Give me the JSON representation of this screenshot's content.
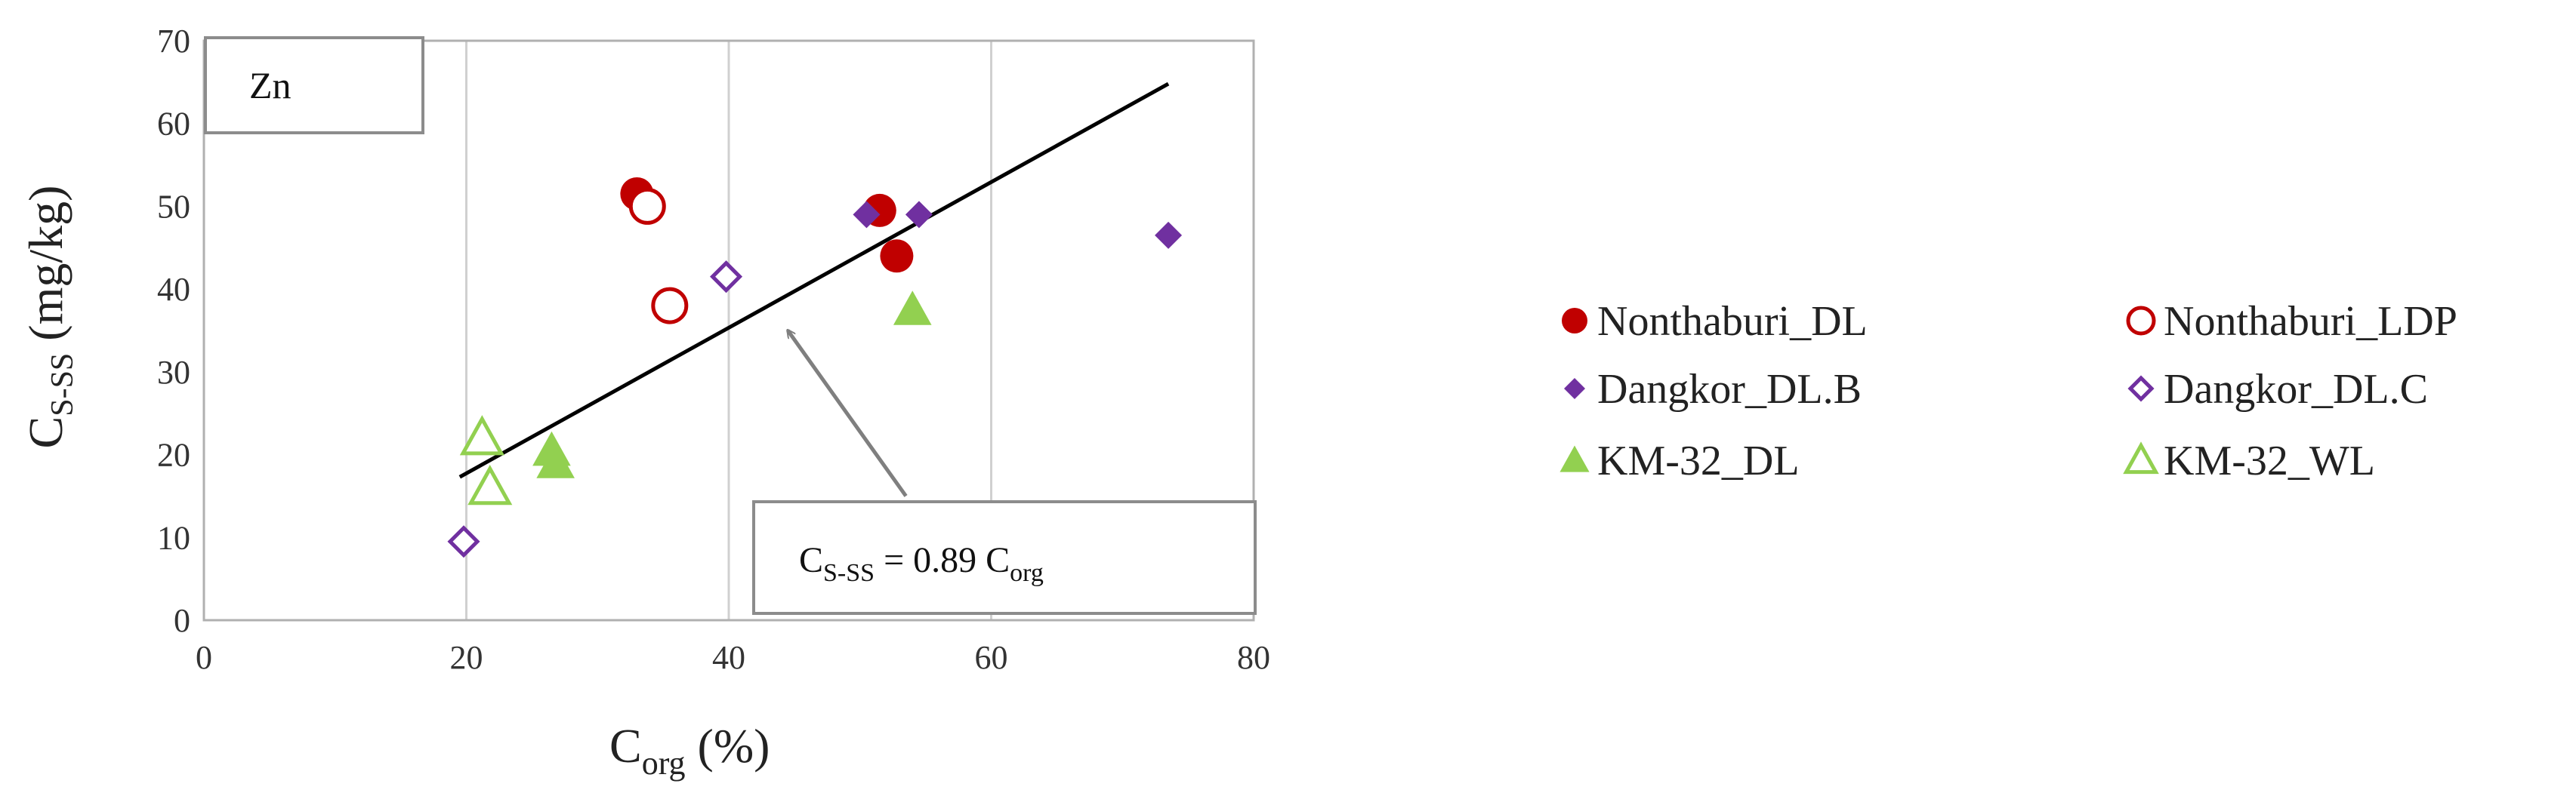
{
  "chart_data": {
    "type": "scatter",
    "panel_label": "Zn",
    "xlabel": {
      "main": "C",
      "sub": "org",
      "unit": "(%)"
    },
    "ylabel": {
      "main": "C",
      "sub": "S-SS",
      "unit": "(mg/kg)"
    },
    "xlim": [
      0,
      80
    ],
    "ylim": [
      0,
      70
    ],
    "x_ticks": [
      "0",
      "20",
      "40",
      "60",
      "80"
    ],
    "y_ticks": [
      "0",
      "10",
      "20",
      "30",
      "40",
      "50",
      "60",
      "70"
    ],
    "grid": "vertical",
    "legend_position": "right",
    "series": [
      {
        "name": "Nonthaburi_DL",
        "marker": "circle",
        "filled": true,
        "color": "#c00000",
        "points": [
          [
            33,
            51.5
          ],
          [
            51.5,
            49.5
          ],
          [
            52.8,
            44
          ]
        ]
      },
      {
        "name": "Nonthaburi_LDP",
        "marker": "circle",
        "filled": false,
        "color": "#c00000",
        "points": [
          [
            33.8,
            50
          ],
          [
            35.5,
            38
          ]
        ]
      },
      {
        "name": "Dangkor_DL.B",
        "marker": "diamond",
        "filled": true,
        "color": "#7030a0",
        "points": [
          [
            50.5,
            49
          ],
          [
            54.5,
            49
          ],
          [
            73.5,
            46.5
          ]
        ]
      },
      {
        "name": "Dangkor_DL.C",
        "marker": "diamond",
        "filled": false,
        "color": "#7030a0",
        "points": [
          [
            19.8,
            9.5
          ],
          [
            39.8,
            41.5
          ]
        ]
      },
      {
        "name": "KM-32_DL",
        "marker": "triangle",
        "filled": true,
        "color": "#92d050",
        "points": [
          [
            26.5,
            20.5
          ],
          [
            26.8,
            19
          ],
          [
            54,
            37.5
          ]
        ]
      },
      {
        "name": "KM-32_WL",
        "marker": "triangle",
        "filled": false,
        "color": "#92d050",
        "points": [
          [
            21.2,
            22
          ],
          [
            21.8,
            16
          ]
        ]
      }
    ],
    "trendline": {
      "label": {
        "lhs_main": "C",
        "lhs_sub": "S-SS",
        "mid": " = 0.89 C",
        "rhs_sub": "org"
      },
      "x": [
        19.5,
        73.5
      ],
      "y": [
        17.3,
        64.8
      ]
    },
    "arrow": {
      "from": [
        53.5,
        15
      ],
      "to": [
        44.5,
        35
      ]
    }
  }
}
